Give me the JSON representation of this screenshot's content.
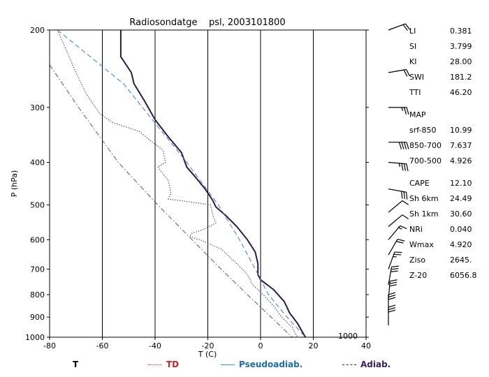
{
  "chart_data": {
    "type": "line",
    "title": "Radiosondatge    psl, 2003101800",
    "xlabel": "T (C)",
    "ylabel": "P (hPa)",
    "x_range": [
      -80,
      40
    ],
    "y_range": [
      1000,
      200
    ],
    "y_scale": "log",
    "x_ticks": [
      "-80",
      "-60",
      "-40",
      "-20",
      "0",
      "20",
      "40"
    ],
    "x_tick_values": [
      -80,
      -60,
      -40,
      -20,
      0,
      20,
      40
    ],
    "y_ticks": [
      "200",
      "300",
      "400",
      "500",
      "600",
      "700",
      "800",
      "900",
      "1000"
    ],
    "y_tick_values": [
      200,
      300,
      400,
      500,
      600,
      700,
      800,
      900,
      1000
    ],
    "isotherm_grid": [
      -60,
      -40,
      -20,
      0,
      20
    ],
    "corner_label": "1000",
    "series": [
      {
        "name": "T",
        "color": "#2a1a4a",
        "style": "solid",
        "points": [
          [
            -53,
            200
          ],
          [
            -53,
            230
          ],
          [
            -49,
            250
          ],
          [
            -48,
            265
          ],
          [
            -44,
            290
          ],
          [
            -40,
            320
          ],
          [
            -35,
            350
          ],
          [
            -30,
            380
          ],
          [
            -28,
            410
          ],
          [
            -25,
            430
          ],
          [
            -21,
            460
          ],
          [
            -18,
            490
          ],
          [
            -17,
            505
          ],
          [
            -13,
            530
          ],
          [
            -9,
            560
          ],
          [
            -5,
            600
          ],
          [
            -2,
            640
          ],
          [
            -1,
            680
          ],
          [
            -1,
            720
          ],
          [
            0,
            740
          ],
          [
            5,
            780
          ],
          [
            9,
            830
          ],
          [
            11,
            880
          ],
          [
            14,
            930
          ],
          [
            17,
            1000
          ]
        ]
      },
      {
        "name": "TD",
        "color": "#333333",
        "style": "dotted",
        "points": [
          [
            -77,
            200
          ],
          [
            -74,
            220
          ],
          [
            -70,
            250
          ],
          [
            -66,
            280
          ],
          [
            -61,
            310
          ],
          [
            -56,
            325
          ],
          [
            -46,
            340
          ],
          [
            -41,
            360
          ],
          [
            -37,
            375
          ],
          [
            -36,
            400
          ],
          [
            -39,
            410
          ],
          [
            -35,
            440
          ],
          [
            -34,
            470
          ],
          [
            -35,
            485
          ],
          [
            -29,
            490
          ],
          [
            -19,
            500
          ],
          [
            -18,
            530
          ],
          [
            -17,
            550
          ],
          [
            -22,
            570
          ],
          [
            -26,
            580
          ],
          [
            -27,
            590
          ],
          [
            -23,
            600
          ],
          [
            -15,
            630
          ],
          [
            -9,
            680
          ],
          [
            -5,
            720
          ],
          [
            -3,
            760
          ],
          [
            1,
            800
          ],
          [
            5,
            850
          ],
          [
            8,
            900
          ],
          [
            12,
            950
          ],
          [
            14,
            1000
          ]
        ]
      },
      {
        "name": "Pseudoadiab.",
        "color": "#3a7fc4",
        "style": "dashed",
        "points": [
          [
            -77,
            200
          ],
          [
            -52,
            265
          ],
          [
            -41,
            320
          ],
          [
            -28,
            400
          ],
          [
            -16,
            500
          ],
          [
            -8,
            600
          ],
          [
            -2,
            700
          ],
          [
            3,
            800
          ],
          [
            10,
            900
          ],
          [
            17,
            1000
          ]
        ]
      },
      {
        "name": "Adiab.",
        "color": "#5a5a6a",
        "style": "dashdot",
        "points": [
          [
            -80,
            240
          ],
          [
            -69,
            300
          ],
          [
            -54,
            400
          ],
          [
            -39,
            500
          ],
          [
            -26,
            600
          ],
          [
            -15,
            700
          ],
          [
            -5,
            800
          ],
          [
            4,
            900
          ],
          [
            12,
            1000
          ]
        ]
      }
    ]
  },
  "indices": [
    {
      "label": "LI",
      "value": "0.381"
    },
    {
      "label": "SI",
      "value": "3.799"
    },
    {
      "label": "KI",
      "value": "28.00"
    },
    {
      "label": "SWI",
      "value": "181.2"
    },
    {
      "label": "TTI",
      "value": "46.20"
    },
    {
      "label": "MAP",
      "value": ""
    },
    {
      "label": "srf-850",
      "value": "10.99"
    },
    {
      "label": "850-700",
      "value": "7.637"
    },
    {
      "label": "700-500",
      "value": "4.926"
    },
    {
      "label": "CAPE",
      "value": "12.10"
    },
    {
      "label": "Sh 6km",
      "value": "24.49"
    },
    {
      "label": "Sh 1km",
      "value": "30.60"
    },
    {
      "label": "NRi",
      "value": "0.040"
    },
    {
      "label": "Wmax",
      "value": "4.920"
    },
    {
      "label": "Ziso",
      "value": "2645."
    },
    {
      "label": "Z-20",
      "value": "6056.8"
    }
  ],
  "legend": [
    {
      "label": "T",
      "color": "#000000",
      "line_color": "#000000",
      "style": "none"
    },
    {
      "label": "TD",
      "color": "#cc2222",
      "line_color": "#cc2222",
      "style": "dotted"
    },
    {
      "label": "Pseudoadiab.",
      "color": "#1a6fb0",
      "line_color": "#3a8fd4",
      "style": "solid"
    },
    {
      "label": "Adiab.",
      "color": "#3a2060",
      "line_color": "#3a2060",
      "style": "dashdot"
    }
  ],
  "wind_barbs": [
    {
      "pressure": 200,
      "direction_deg": 250,
      "flags": 0,
      "full": 2,
      "half": 0
    },
    {
      "pressure": 250,
      "direction_deg": 260,
      "flags": 0,
      "full": 2,
      "half": 0
    },
    {
      "pressure": 300,
      "direction_deg": 270,
      "flags": 0,
      "full": 2,
      "half": 1
    },
    {
      "pressure": 360,
      "direction_deg": 270,
      "flags": 0,
      "full": 4,
      "half": 0
    },
    {
      "pressure": 400,
      "direction_deg": 275,
      "flags": 0,
      "full": 3,
      "half": 1
    },
    {
      "pressure": 460,
      "direction_deg": 280,
      "flags": 0,
      "full": 3,
      "half": 0
    },
    {
      "pressure": 520,
      "direction_deg": 230,
      "flags": 0,
      "full": 1,
      "half": 0
    },
    {
      "pressure": 560,
      "direction_deg": 230,
      "flags": 0,
      "full": 1,
      "half": 0
    },
    {
      "pressure": 600,
      "direction_deg": 220,
      "flags": 0,
      "full": 1,
      "half": 1
    },
    {
      "pressure": 650,
      "direction_deg": 210,
      "flags": 0,
      "full": 2,
      "half": 0
    },
    {
      "pressure": 700,
      "direction_deg": 200,
      "flags": 0,
      "full": 2,
      "half": 1
    },
    {
      "pressure": 760,
      "direction_deg": 190,
      "flags": 0,
      "full": 3,
      "half": 0
    },
    {
      "pressure": 820,
      "direction_deg": 185,
      "flags": 0,
      "full": 3,
      "half": 0
    },
    {
      "pressure": 880,
      "direction_deg": 180,
      "flags": 0,
      "full": 3,
      "half": 0
    },
    {
      "pressure": 940,
      "direction_deg": 180,
      "flags": 0,
      "full": 3,
      "half": 0
    }
  ]
}
